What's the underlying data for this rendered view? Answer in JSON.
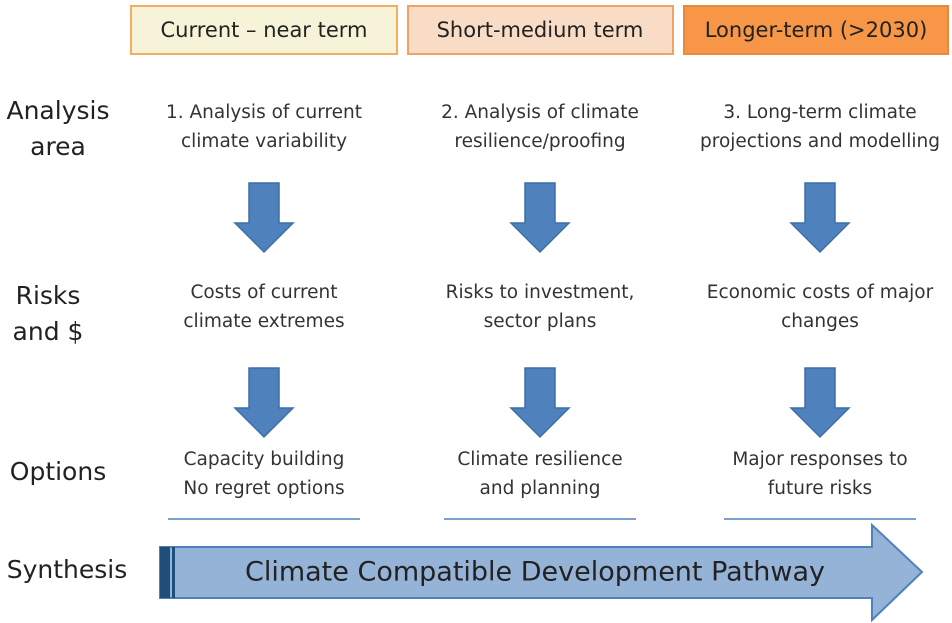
{
  "columns": [
    {
      "header": "Current – near term",
      "analysis": [
        "1. Analysis of current",
        "climate variability"
      ],
      "risks": [
        "Costs of current",
        "climate extremes"
      ],
      "options": [
        "Capacity building",
        "No regret options"
      ]
    },
    {
      "header": "Short-medium term",
      "analysis": [
        "2. Analysis of climate",
        "resilience/proofing"
      ],
      "risks": [
        "Risks to investment,",
        "sector plans"
      ],
      "options": [
        "Climate resilience",
        "and planning"
      ]
    },
    {
      "header": "Longer-term (>2030)",
      "analysis": [
        "3. Long-term climate",
        "projections and modelling"
      ],
      "risks": [
        "Economic costs of major",
        "changes"
      ],
      "options": [
        "Major responses to",
        "future risks"
      ]
    }
  ],
  "rows": [
    [
      "Analysis",
      "area"
    ],
    [
      "Risks",
      "and $"
    ],
    [
      "Options"
    ],
    [
      "Synthesis"
    ]
  ],
  "synthesis": "Climate Compatible Development Pathway"
}
